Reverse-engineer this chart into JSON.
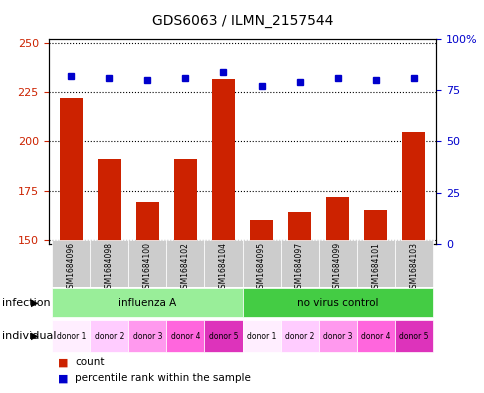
{
  "title": "GDS6063 / ILMN_2157544",
  "samples": [
    "GSM1684096",
    "GSM1684098",
    "GSM1684100",
    "GSM1684102",
    "GSM1684104",
    "GSM1684095",
    "GSM1684097",
    "GSM1684099",
    "GSM1684101",
    "GSM1684103"
  ],
  "counts": [
    222,
    191,
    169,
    191,
    232,
    160,
    164,
    172,
    165,
    205
  ],
  "percentiles": [
    82,
    81,
    80,
    81,
    84,
    77,
    79,
    81,
    80,
    81
  ],
  "ylim_left": [
    148,
    252
  ],
  "ylim_right": [
    0,
    100
  ],
  "yticks_left": [
    150,
    175,
    200,
    225,
    250
  ],
  "yticks_right": [
    0,
    25,
    50,
    75,
    100
  ],
  "ytick_labels_right": [
    "0",
    "25",
    "50",
    "75",
    "100%"
  ],
  "bar_color": "#cc2200",
  "dot_color": "#0000cc",
  "bar_width": 0.6,
  "infection_groups": [
    {
      "label": "influenza A",
      "start": 0,
      "end": 5,
      "color": "#99ee99"
    },
    {
      "label": "no virus control",
      "start": 5,
      "end": 10,
      "color": "#44cc44"
    }
  ],
  "individuals": [
    "donor 1",
    "donor 2",
    "donor 3",
    "donor 4",
    "donor 5",
    "donor 1",
    "donor 2",
    "donor 3",
    "donor 4",
    "donor 5"
  ],
  "individual_colors": [
    "#ffccff",
    "#ffaaff",
    "#ff88ee",
    "#ff66dd",
    "#ee44cc",
    "#ffccff",
    "#ffaaff",
    "#ff88ee",
    "#ff66dd",
    "#ee44cc"
  ],
  "individual_colors2": [
    "#ffddff",
    "#ffccff",
    "#ffaaee",
    "#ff88dd",
    "#ff55cc",
    "#ffddff",
    "#ffccff",
    "#ffaaee",
    "#ff88dd",
    "#ff55cc"
  ],
  "sample_bg_color": "#cccccc",
  "legend_count_color": "#cc2200",
  "legend_dot_color": "#0000cc",
  "infection_label_color": "#000000",
  "individual_label_color": "#000000"
}
